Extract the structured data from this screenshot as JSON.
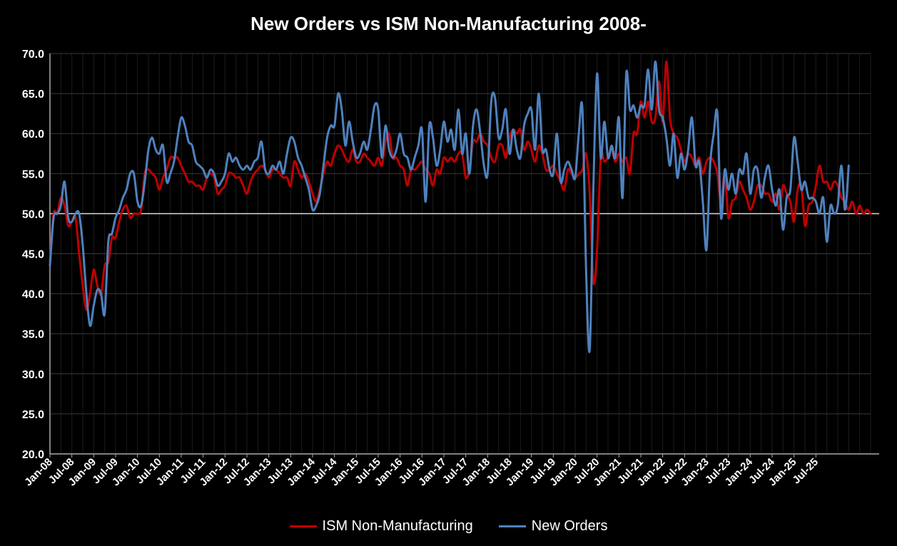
{
  "chart_data": {
    "type": "line",
    "title": "New Orders vs ISM Non-Manufacturing 2008-",
    "xlabel": "",
    "ylabel": "",
    "ylim": [
      20,
      70
    ],
    "yticks": [
      "20.0",
      "25.0",
      "30.0",
      "35.0",
      "40.0",
      "45.0",
      "50.0",
      "55.0",
      "60.0",
      "65.0",
      "70.0"
    ],
    "xticks": [
      "Jan-08",
      "Jul-08",
      "Jan-09",
      "Jul-09",
      "Jan-10",
      "Jul-10",
      "Jan-11",
      "Jul-11",
      "Jan-12",
      "Jul-12",
      "Jan-13",
      "Jul-13",
      "Jan-14",
      "Jul-14",
      "Jan-15",
      "Jul-15",
      "Jan-16",
      "Jul-16",
      "Jan-17",
      "Jul-17",
      "Jan-18",
      "Jul-18",
      "Jan-19",
      "Jul-19",
      "Jan-20",
      "Jul-20",
      "Jan-21",
      "Jul-21",
      "Jan-22",
      "Jul-22",
      "Jan-23",
      "Jul-23",
      "Jan-24",
      "Jul-24",
      "Jan-25",
      "Jul-25"
    ],
    "reference_line": 50,
    "grid": true,
    "legend_position": "bottom",
    "series": [
      {
        "name": "ISM Non-Manufacturing",
        "color": "#C00000",
        "values": [
          44,
          50,
          50,
          52,
          51,
          48.5,
          49,
          49.5,
          45,
          41,
          38,
          40,
          43,
          41,
          40,
          43.5,
          44,
          47,
          47,
          49,
          50.5,
          51,
          49.5,
          50,
          50,
          50.5,
          55,
          55.5,
          55,
          54.5,
          53,
          54.5,
          55.5,
          57,
          57,
          57,
          56,
          55,
          54,
          54,
          53.5,
          53.5,
          53,
          54.5,
          55,
          54.5,
          52.5,
          53,
          53.5,
          55,
          55,
          54.5,
          54.5,
          53.5,
          52.5,
          54,
          55,
          55.5,
          56,
          55.5,
          54.5,
          55.5,
          55.5,
          55,
          54.5,
          54.5,
          53.5,
          56.5,
          55.5,
          54.5,
          55,
          54,
          52.5,
          51.5,
          53,
          55,
          56.5,
          56,
          57.5,
          58.5,
          58,
          57,
          56.5,
          58,
          56.5,
          56.5,
          57.5,
          57,
          56.5,
          56,
          57,
          56,
          59,
          60,
          57,
          57,
          56,
          55.5,
          53.5,
          55.5,
          55.5,
          56,
          56.5,
          55.5,
          55,
          53.5,
          55.5,
          55,
          57,
          56.5,
          57,
          56.5,
          57.5,
          57.5,
          54.5,
          55.5,
          59,
          59,
          60,
          59,
          58.5,
          57,
          56.5,
          58.5,
          58.5,
          57,
          59.5,
          60.5,
          60,
          60.5,
          58,
          59,
          58,
          56.5,
          58.5,
          57.5,
          55.5,
          55.5,
          56,
          55,
          54,
          53,
          55.5,
          55,
          54.5,
          55,
          55.5,
          57.5,
          52.5,
          41.5,
          45.5,
          57,
          56.5,
          57,
          58,
          56.5,
          57.5,
          56.5,
          57,
          55,
          60,
          60,
          64,
          62,
          64,
          61.5,
          62,
          66.5,
          61.5,
          69,
          62,
          60,
          59.5,
          58,
          56.5,
          57.5,
          57,
          56,
          57,
          55,
          56.5,
          57,
          56.5,
          55,
          51.5,
          55,
          49.5,
          51.5,
          52,
          54,
          53,
          52,
          50.5,
          51.5,
          53.5,
          53.5,
          52.5,
          52.5,
          51.5,
          52.5,
          50.5,
          53.5,
          52.5,
          51.5,
          49,
          53,
          53.5,
          48.5,
          51,
          51.5,
          53.5,
          56,
          54,
          54,
          53,
          54,
          53.5,
          52,
          51.5,
          50.5,
          51.5,
          50,
          51,
          50,
          50.5,
          50
        ]
      },
      {
        "name": "New Orders",
        "color": "#4F81BD",
        "values": [
          43.5,
          49.5,
          50,
          51,
          54,
          49.5,
          49,
          50,
          50,
          46,
          40,
          36,
          38.5,
          40.5,
          40,
          37.5,
          46.5,
          47.5,
          49.5,
          50.5,
          52,
          53,
          55,
          55,
          51.5,
          51,
          54,
          58,
          59.5,
          58,
          57.5,
          58.5,
          54,
          55,
          56.5,
          59.5,
          62,
          61,
          59,
          58.5,
          56.5,
          56,
          55.5,
          54.5,
          55.5,
          55,
          53.5,
          54,
          55,
          57.5,
          56.5,
          57,
          56,
          55.5,
          56,
          55.5,
          56.5,
          57,
          59,
          55.5,
          55,
          56,
          55.5,
          56.5,
          55,
          57.5,
          59.5,
          59,
          57,
          56,
          54.5,
          53,
          50.5,
          51,
          52.5,
          56,
          59.5,
          61,
          61,
          65,
          63,
          58.5,
          61.5,
          59,
          57,
          57.5,
          59,
          58,
          60.5,
          63.5,
          63,
          57,
          61,
          58,
          57,
          58,
          60,
          57.5,
          57,
          55.5,
          57,
          58.5,
          60.5,
          51.5,
          61,
          59.5,
          56,
          58,
          61.5,
          59,
          60.5,
          58,
          63,
          57.5,
          60,
          55,
          61,
          63,
          60,
          56,
          55,
          64,
          64.5,
          59.5,
          60.5,
          63,
          57.5,
          60.5,
          58,
          57,
          61,
          62.5,
          63,
          58,
          65,
          58,
          58,
          55.5,
          55,
          60,
          54,
          55.5,
          56.5,
          55.5,
          54.5,
          60,
          63,
          43,
          33,
          53.5,
          67.5,
          57,
          61.5,
          57,
          58.5,
          57,
          62,
          52,
          67.5,
          63,
          63.5,
          62,
          63.5,
          63.5,
          68,
          63,
          69,
          63,
          62,
          59.5,
          56,
          60,
          54.5,
          57.5,
          55.5,
          58,
          62,
          56,
          56.5,
          51.5,
          45.5,
          56,
          60,
          62.5,
          49.5,
          55.5,
          53,
          55,
          52.5,
          55.5,
          55,
          57.5,
          52.5,
          55.5,
          55.5,
          52,
          54.5,
          56,
          53,
          51,
          53,
          48,
          52,
          53,
          59.5,
          56.5,
          53,
          54,
          52,
          52,
          51.5,
          50,
          52,
          46.5,
          51,
          50,
          51,
          56,
          50.5,
          56
        ]
      }
    ]
  }
}
